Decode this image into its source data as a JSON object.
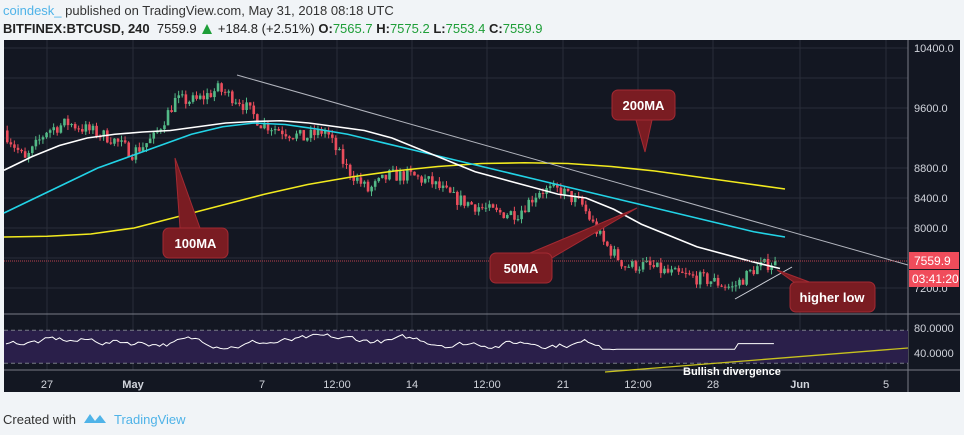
{
  "header": {
    "publisher": "coindesk_",
    "published_text": " published on TradingView.com, May 31, 2018 08:18 UTC",
    "symbol": "BITFINEX:BTCUSD, 240",
    "last": "7559.9",
    "change": "+184.8 (+2.51%)",
    "o_label": "O:",
    "o": "7565.7",
    "h_label": "H:",
    "h": "7575.2",
    "l_label": "L:",
    "l": "7553.4",
    "c_label": "C:",
    "c": "7559.9"
  },
  "footer": {
    "created_with": "Created with",
    "brand": "TradingView"
  },
  "colors": {
    "bg": "#131722",
    "up": "#53b987",
    "down": "#eb4d5c",
    "ma50": "#ffffff",
    "ma100": "#22d3e6",
    "ma200": "#f2ea1e",
    "rsi": "#ffffff",
    "label": "#f04c5b"
  },
  "chart_data": {
    "type": "candlestick",
    "timeframe": "240",
    "x_ticks": [
      "27",
      "May",
      "7",
      "12:00",
      "14",
      "12:00",
      "21",
      "12:00",
      "28",
      "Jun",
      "5"
    ],
    "y_ticks": [
      "10400.0",
      "9600.0",
      "8800.0",
      "8400.0",
      "8000.0",
      "7200.0"
    ],
    "ylim": [
      6900,
      10500
    ],
    "last_price_label": "7559.9",
    "countdown_label": "03:41:20",
    "daily_close_estimates": [
      9300,
      8900,
      9300,
      9400,
      9300,
      9200,
      9000,
      9200,
      9700,
      9700,
      9850,
      9700,
      9400,
      9300,
      9200,
      9300,
      8800,
      8500,
      8700,
      8700,
      8600,
      8400,
      8300,
      8200,
      8200,
      8500,
      8500,
      8300,
      7800,
      7500,
      7500,
      7400,
      7350,
      7300,
      7200,
      7450,
      7560
    ],
    "ma50": [
      8770,
      8950,
      9100,
      9200,
      9250,
      9280,
      9300,
      9350,
      9400,
      9420,
      9430,
      9400,
      9350,
      9300,
      9200,
      9050,
      8900,
      8750,
      8650,
      8550,
      8450,
      8400,
      8250,
      8050,
      7900,
      7750,
      7650,
      7550,
      7460
    ],
    "ma100": [
      8200,
      8400,
      8600,
      8800,
      8950,
      9100,
      9250,
      9350,
      9400,
      9380,
      9320,
      9250,
      9150,
      9050,
      8950,
      8850,
      8750,
      8650,
      8550,
      8450,
      8350,
      8250,
      8150,
      8050,
      7950,
      7880
    ],
    "ma200": [
      7880,
      7890,
      7920,
      8000,
      8150,
      8300,
      8450,
      8580,
      8680,
      8760,
      8820,
      8860,
      8870,
      8860,
      8820,
      8760,
      8680,
      8600,
      8520
    ],
    "rsi": {
      "y_ticks": [
        "80.0000",
        "40.0000"
      ],
      "upper_band": 70,
      "lower_band": 30
    },
    "annotations": [
      "200MA",
      "100MA",
      "50MA",
      "higher low",
      "Bullish divergence"
    ]
  }
}
